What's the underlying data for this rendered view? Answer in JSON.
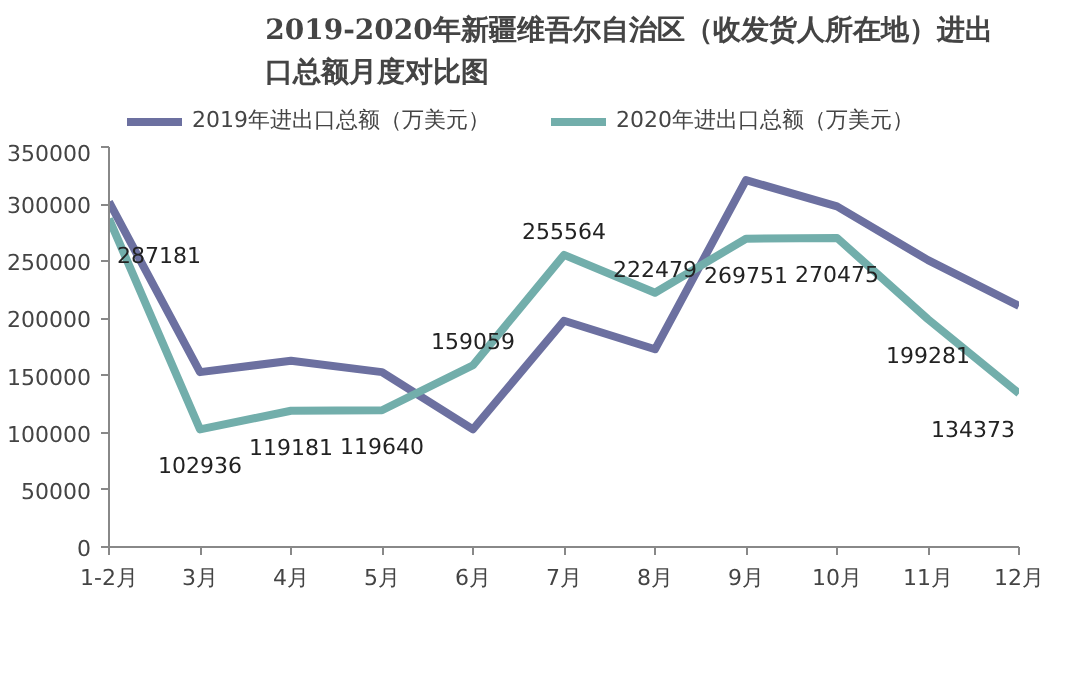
{
  "chart_data": {
    "type": "line",
    "title": "2019-2020年新疆维吾尔自治区（收发货人所在地）进出口总额月度对比图",
    "categories": [
      "1-2月",
      "3月",
      "4月",
      "5月",
      "6月",
      "7月",
      "8月",
      "9月",
      "10月",
      "11月",
      "12月"
    ],
    "series": [
      {
        "name": "2019年进出口总额（万美元）",
        "color": "#6c70a0",
        "values": [
          302000,
          153000,
          163000,
          153000,
          103000,
          198000,
          173000,
          321000,
          298000,
          251000,
          211000
        ]
      },
      {
        "name": "2020年进出口总额（万美元）",
        "color": "#72aeab",
        "values": [
          287181,
          102936,
          119181,
          119640,
          159059,
          255564,
          222479,
          269751,
          270475,
          199281,
          134373
        ],
        "value_labels": [
          "287181",
          "102936",
          "119181",
          "119640",
          "159059",
          "255564",
          "222479",
          "269751",
          "270475",
          "199281",
          "134373"
        ]
      }
    ],
    "ylim": [
      0,
      350000
    ],
    "yticks": [
      0,
      50000,
      100000,
      150000,
      200000,
      250000,
      300000,
      350000
    ],
    "grid": false,
    "legend": "top",
    "marker": "none",
    "line_style": "solid"
  }
}
